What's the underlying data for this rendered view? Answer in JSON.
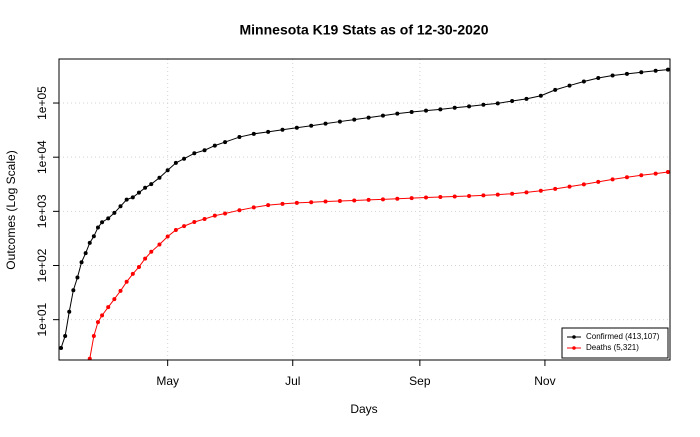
{
  "chart_data": {
    "type": "scatter",
    "title": "Minnesota K19 Stats as of 12-30-2020",
    "x_label": "Days",
    "y_label": "Outcomes (Log Scale)",
    "log_y": true,
    "grid": true,
    "legend": "bottom-right",
    "x": [
      0,
      2,
      4,
      6,
      8,
      10,
      12,
      14,
      16,
      18,
      20,
      23,
      26,
      29,
      32,
      35,
      38,
      41,
      44,
      48,
      52,
      56,
      60,
      65,
      70,
      75,
      80,
      87,
      94,
      101,
      108,
      115,
      122,
      129,
      136,
      143,
      150,
      157,
      164,
      171,
      178,
      185,
      192,
      199,
      206,
      213,
      220,
      227,
      234,
      241,
      248,
      255,
      262,
      269,
      276,
      283,
      290,
      296
    ],
    "series": [
      {
        "name": "Confirmed (413,107)",
        "color": "#000000",
        "values": [
          3,
          5,
          14,
          35,
          60,
          115,
          169,
          262,
          346,
          503,
          629,
          742,
          935,
          1240,
          1650,
          1809,
          2213,
          2721,
          3185,
          4181,
          5730,
          7851,
          9365,
          11799,
          13435,
          16372,
          19005,
          23531,
          26980,
          29316,
          32031,
          35033,
          38136,
          41722,
          45470,
          49488,
          53692,
          58640,
          63723,
          68133,
          72390,
          76355,
          81608,
          86722,
          92712,
          98447,
          108922,
          119396,
          136317,
          175000,
          210000,
          250000,
          290000,
          322000,
          346000,
          370000,
          395000,
          413107
        ]
      },
      {
        "name": "Deaths (5,321)",
        "color": "#ff0000",
        "values": [
          null,
          null,
          null,
          null,
          null,
          null,
          null,
          1.9,
          5,
          9,
          12,
          17,
          24,
          34,
          50,
          70,
          94,
          134,
          179,
          244,
          343,
          453,
          534,
          636,
          722,
          832,
          914,
          1050,
          1181,
          1300,
          1372,
          1432,
          1476,
          1523,
          1556,
          1590,
          1628,
          1667,
          1704,
          1758,
          1799,
          1837,
          1877,
          1925,
          1977,
          2034,
          2118,
          2242,
          2403,
          2600,
          2860,
          3150,
          3500,
          3890,
          4260,
          4630,
          4970,
          5321
        ]
      }
    ],
    "xlim": [
      -1,
      297
    ],
    "xticks": [
      {
        "value": 52,
        "label": "May"
      },
      {
        "value": 113,
        "label": "Jul"
      },
      {
        "value": 175,
        "label": "Sep"
      },
      {
        "value": 236,
        "label": "Nov"
      }
    ],
    "ylim": [
      1.8,
      650000
    ],
    "yticks": [
      {
        "value": 10,
        "label": "1e+01"
      },
      {
        "value": 100,
        "label": "1e+02"
      },
      {
        "value": 1000,
        "label": "1e+03"
      },
      {
        "value": 10000,
        "label": "1e+04"
      },
      {
        "value": 100000,
        "label": "1e+05"
      }
    ]
  }
}
